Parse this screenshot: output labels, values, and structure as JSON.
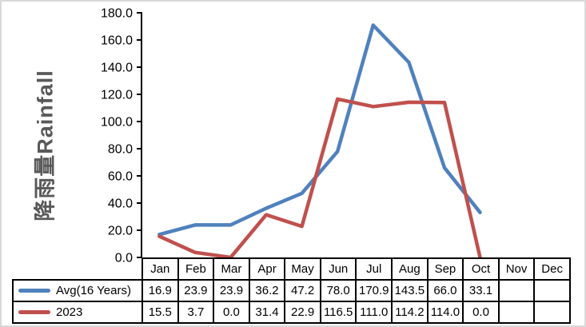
{
  "window": {
    "background": "#ffffff",
    "frame_border_color": "#d9d9d9"
  },
  "chart_data": {
    "type": "line",
    "title": "",
    "y_axis_title": "降雨量Rainfall",
    "xlabel": "",
    "ylabel": "降雨量Rainfall",
    "categories": [
      "Jan",
      "Feb",
      "Mar",
      "Apr",
      "May",
      "Jun",
      "Jul",
      "Aug",
      "Sep",
      "Oct",
      "Nov",
      "Dec"
    ],
    "series": [
      {
        "name": "Avg(16 Years)",
        "color": "#4F81BD",
        "values": [
          16.9,
          23.9,
          23.9,
          36.2,
          47.2,
          78.0,
          170.9,
          143.5,
          66.0,
          33.1,
          null,
          null
        ],
        "values_display": [
          "16.9",
          "23.9",
          "23.9",
          "36.2",
          "47.2",
          "78.0",
          "170.9",
          "143.5",
          "66.0",
          "33.1",
          "",
          ""
        ]
      },
      {
        "name": "2023",
        "color": "#C0504D",
        "values": [
          15.5,
          3.7,
          0.0,
          31.4,
          22.9,
          116.5,
          111.0,
          114.2,
          114.0,
          0.0,
          null,
          null
        ],
        "values_display": [
          "15.5",
          "3.7",
          "0.0",
          "31.4",
          "22.9",
          "116.5",
          "111.0",
          "114.2",
          "114.0",
          "0.0",
          "",
          ""
        ]
      }
    ],
    "ylim": [
      0,
      180
    ],
    "ytick_step": 20,
    "ytick_labels": [
      "180.0",
      "160.0",
      "140.0",
      "120.0",
      "100.0",
      "80.0",
      "60.0",
      "40.0",
      "20.0",
      "0.0"
    ],
    "grid": false,
    "legend_position": "data-table-left",
    "colors": {
      "axis_line": "#000000",
      "tick_label": "#000000",
      "axis_title": "#595959",
      "table_border": "#000000"
    }
  }
}
